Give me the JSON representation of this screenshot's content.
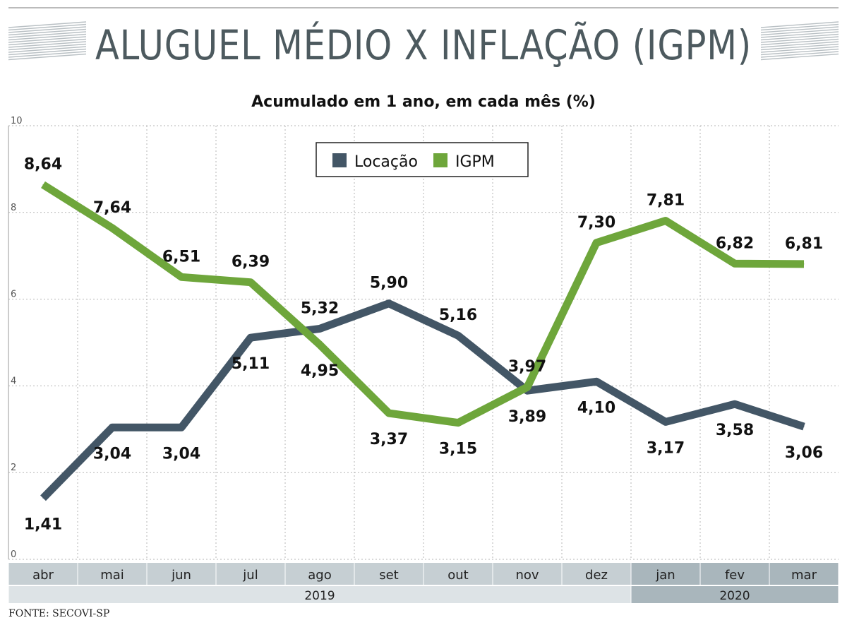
{
  "title": "ALUGUEL MÉDIO X INFLAÇÃO (IGPM)",
  "source": "FONTE: SECOVI-SP",
  "colors": {
    "locacao": "#435666",
    "igpm": "#6ea63b",
    "title": "#4d5a5f",
    "month_band": "#c6cfd3",
    "year_band": "#dde3e6",
    "band_2020": "#a9b6bc"
  },
  "chart_data": {
    "type": "line",
    "title": "Acumulado em 1 ano, em cada mês (%)",
    "categories": [
      "abr",
      "mai",
      "jun",
      "jul",
      "ago",
      "set",
      "out",
      "nov",
      "dez",
      "jan",
      "fev",
      "mar"
    ],
    "year_groups": [
      {
        "label": "2019",
        "from": "abr",
        "to": "dez"
      },
      {
        "label": "2020",
        "from": "jan",
        "to": "mar"
      }
    ],
    "series": [
      {
        "name": "Locação",
        "color": "#435666",
        "values": [
          1.41,
          3.04,
          3.04,
          5.11,
          5.32,
          5.9,
          5.16,
          3.89,
          4.1,
          3.17,
          3.58,
          3.06
        ],
        "labels": [
          "1,41",
          "3,04",
          "3,04",
          "5,11",
          "5,32",
          "5,90",
          "5,16",
          "3,89",
          "4,10",
          "3,17",
          "3,58",
          "3,06"
        ]
      },
      {
        "name": "IGPM",
        "color": "#6ea63b",
        "values": [
          8.64,
          7.64,
          6.51,
          6.39,
          4.95,
          3.37,
          3.15,
          3.97,
          7.3,
          7.81,
          6.82,
          6.81
        ],
        "labels": [
          "8,64",
          "7,64",
          "6,51",
          "6,39",
          "4,95",
          "3,37",
          "3,15",
          "3,97",
          "7,30",
          "7,81",
          "6,82",
          "6,81"
        ]
      }
    ],
    "ylim": [
      0,
      10
    ],
    "yticks": [
      0,
      2,
      4,
      6,
      8,
      10
    ],
    "grid": true,
    "legend": "top-center"
  }
}
